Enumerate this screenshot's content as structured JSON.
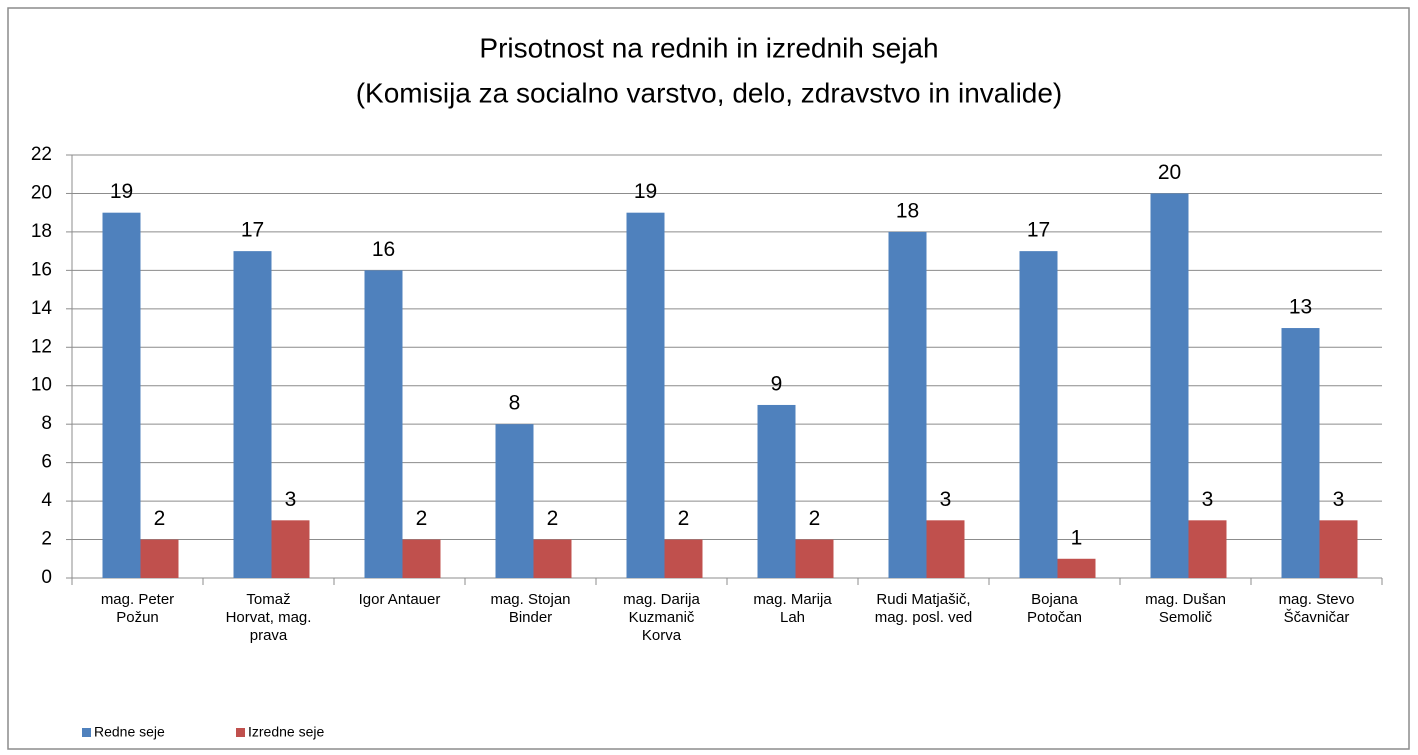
{
  "chart_data": {
    "type": "bar",
    "title": "Prisotnost na rednih in izrednih sejah",
    "subtitle": "(Komisija za socialno varstvo, delo, zdravstvo in invalide)",
    "categories": [
      "mag. Peter Požun",
      "Tomaž Horvat, mag. prava",
      "Igor Antauer",
      "mag. Stojan Binder",
      "mag. Darija Kuzmanič Korva",
      "mag. Marija Lah",
      "Rudi Matjašič, mag. posl. ved",
      "Bojana Potočan",
      "mag. Dušan Semolič",
      "mag. Stevo Ščavničar"
    ],
    "series": [
      {
        "name": "Redne seje",
        "color": "#4f81bd",
        "values": [
          19,
          17,
          16,
          8,
          19,
          9,
          18,
          17,
          20,
          13
        ]
      },
      {
        "name": "Izredne seje",
        "color": "#c0504d",
        "values": [
          2,
          3,
          2,
          2,
          2,
          2,
          3,
          1,
          3,
          3
        ]
      }
    ],
    "ylim": [
      0,
      22
    ],
    "yticks": [
      0,
      2,
      4,
      6,
      8,
      10,
      12,
      14,
      16,
      18,
      20,
      22
    ],
    "grid": true,
    "legend": "bottom-left"
  }
}
